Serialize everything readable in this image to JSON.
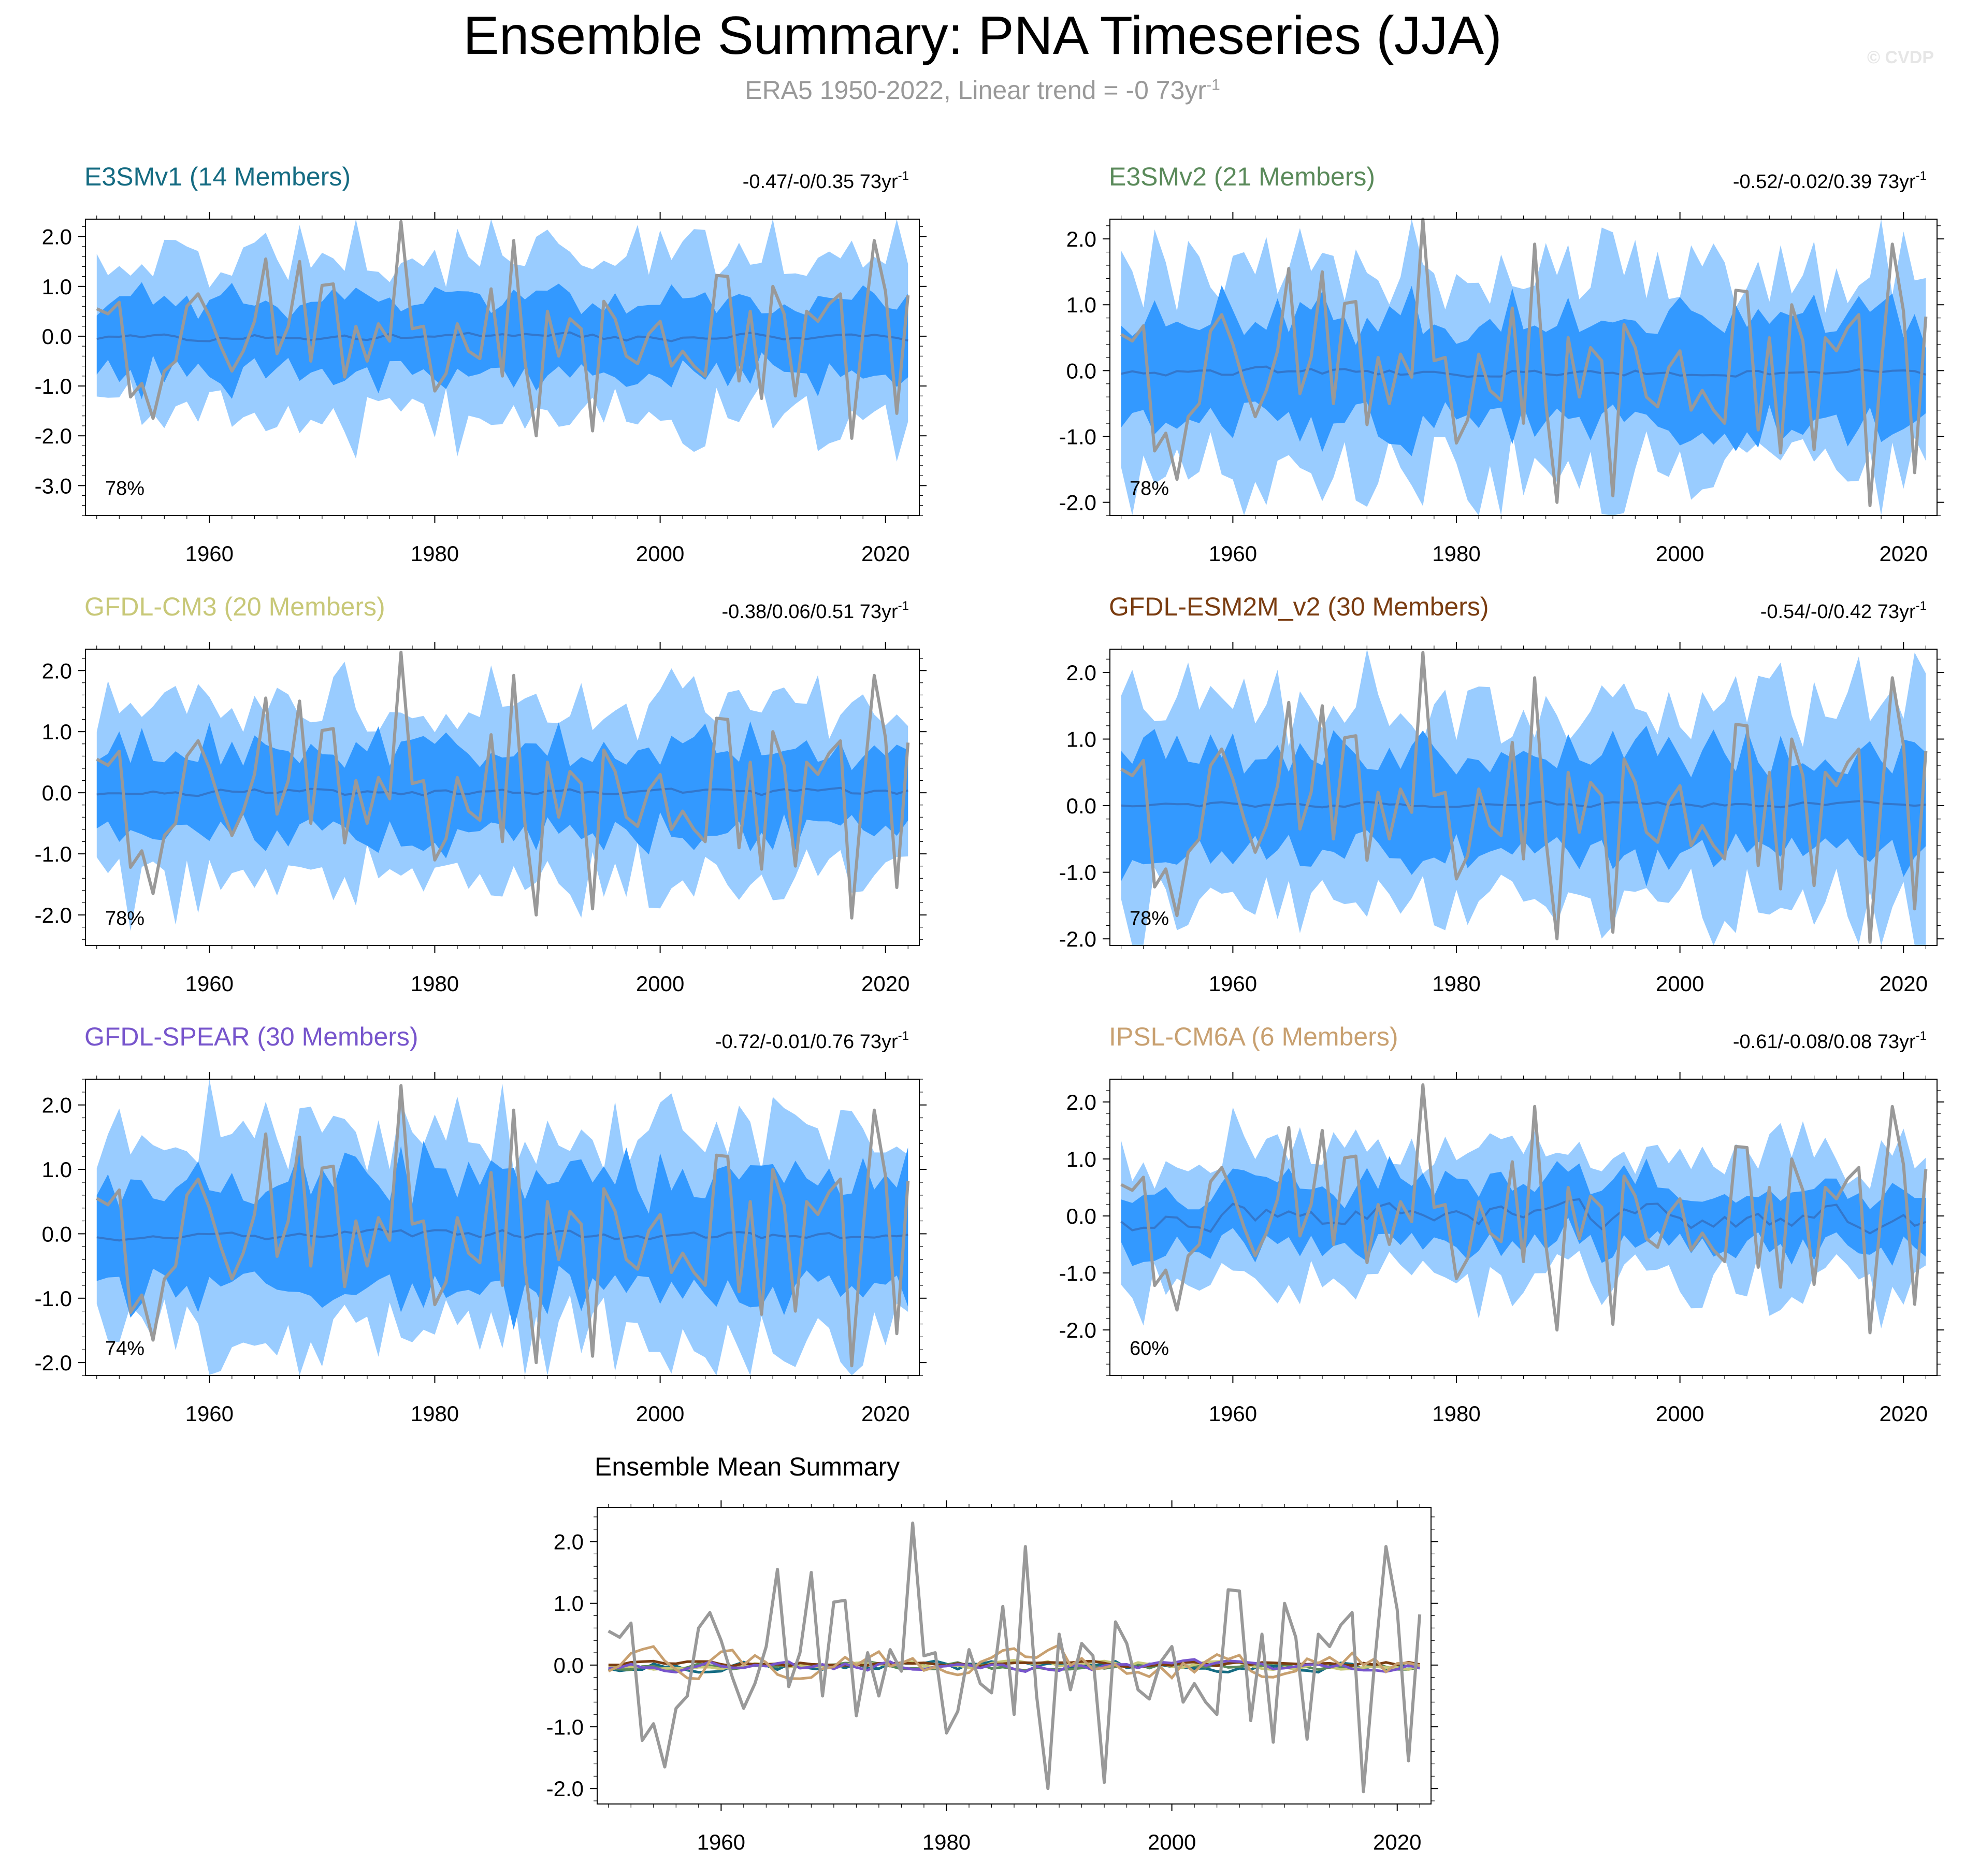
{
  "header": {
    "title": "Ensemble Summary: PNA Timeseries (JJA)",
    "subtitle_prefix": "ERA5 1950-2022, Linear trend = -0 73yr",
    "subtitle_sup": "-1",
    "watermark": "© CVDP"
  },
  "colors": {
    "obs": "#999999",
    "inner_band": "#3399ff",
    "outer_band": "#99ccff",
    "mean": "#3377cc",
    "E3SMv1": "#146b82",
    "E3SMv2": "#5a8a5a",
    "GFDL-CM3": "#c8c878",
    "GFDL-ESM2M_v2": "#7a3c10",
    "GFDL-SPEAR": "#7755cc",
    "IPSL-CM6A": "#c8a070"
  },
  "chart_data": [
    {
      "type": "area",
      "title": "E3SMv1 (14 Members)",
      "title_color": "#146b82",
      "trend_text": "-0.47/-0/0.35 73yr",
      "pct": "78%",
      "ylim": [
        -3.6,
        2.35
      ],
      "xlim": [
        1949,
        2023
      ],
      "yticks": [
        2.0,
        1.0,
        0.0,
        -1.0,
        -2.0,
        -3.0
      ],
      "ytick_labels": [
        "2.0",
        "1.0",
        "0.0",
        "-1.0",
        "-2.0",
        "-3.0"
      ],
      "xticks": [
        1960,
        1980,
        2000,
        2020
      ],
      "xtick_labels": [
        "1960",
        "1980",
        "2000",
        "2020"
      ],
      "seed": 11,
      "mean_amp": 0.1,
      "inner_hw": 0.75,
      "outer_hw": 1.6,
      "mean_offset": -0.02
    },
    {
      "type": "area",
      "title": "E3SMv2 (21 Members)",
      "title_color": "#5a8a5a",
      "trend_text": "-0.52/-0.02/0.39 73yr",
      "pct": "78%",
      "ylim": [
        -2.2,
        2.3
      ],
      "xlim": [
        1949,
        2023
      ],
      "yticks": [
        2.0,
        1.0,
        0.0,
        -1.0,
        -2.0
      ],
      "ytick_labels": [
        "2.0",
        "1.0",
        "0.0",
        "-1.0",
        "-2.0"
      ],
      "xticks": [
        1960,
        1980,
        2000,
        2020
      ],
      "xtick_labels": [
        "1960",
        "1980",
        "2000",
        "2020"
      ],
      "seed": 23,
      "mean_amp": 0.08,
      "inner_hw": 0.8,
      "outer_hw": 1.55,
      "mean_offset": -0.02
    },
    {
      "type": "area",
      "title": "GFDL-CM3 (20 Members)",
      "title_color": "#c8c878",
      "trend_text": "-0.38/0.06/0.51 73yr",
      "pct": "78%",
      "ylim": [
        -2.5,
        2.35
      ],
      "xlim": [
        1949,
        2023
      ],
      "yticks": [
        2.0,
        1.0,
        0.0,
        -1.0,
        -2.0
      ],
      "ytick_labels": [
        "2.0",
        "1.0",
        "0.0",
        "-1.0",
        "-2.0"
      ],
      "xticks": [
        1960,
        1980,
        2000,
        2020
      ],
      "xtick_labels": [
        "1960",
        "1980",
        "2000",
        "2020"
      ],
      "seed": 37,
      "mean_amp": 0.08,
      "inner_hw": 0.7,
      "outer_hw": 1.45,
      "mean_offset": 0.0
    },
    {
      "type": "area",
      "title": "GFDL-ESM2M_v2 (30 Members)",
      "title_color": "#7a3c10",
      "trend_text": "-0.54/-0/0.42 73yr",
      "pct": "78%",
      "ylim": [
        -2.1,
        2.35
      ],
      "xlim": [
        1949,
        2023
      ],
      "yticks": [
        2.0,
        1.0,
        0.0,
        -1.0,
        -2.0
      ],
      "ytick_labels": [
        "2.0",
        "1.0",
        "0.0",
        "-1.0",
        "-2.0"
      ],
      "xticks": [
        1960,
        1980,
        2000,
        2020
      ],
      "xtick_labels": [
        "1960",
        "1980",
        "2000",
        "2020"
      ],
      "seed": 41,
      "mean_amp": 0.05,
      "inner_hw": 0.75,
      "outer_hw": 1.5,
      "mean_offset": 0.02
    },
    {
      "type": "area",
      "title": "GFDL-SPEAR (30 Members)",
      "title_color": "#7755cc",
      "trend_text": "-0.72/-0.01/0.76 73yr",
      "pct": "74%",
      "ylim": [
        -2.2,
        2.4
      ],
      "xlim": [
        1949,
        2023
      ],
      "yticks": [
        2.0,
        1.0,
        0.0,
        -1.0,
        -2.0
      ],
      "ytick_labels": [
        "2.0",
        "1.0",
        "0.0",
        "-1.0",
        "-2.0"
      ],
      "xticks": [
        1960,
        1980,
        2000,
        2020
      ],
      "xtick_labels": [
        "1960",
        "1980",
        "2000",
        "2020"
      ],
      "seed": 53,
      "mean_amp": 0.1,
      "inner_hw": 0.85,
      "outer_hw": 1.6,
      "mean_offset": -0.02
    },
    {
      "type": "area",
      "title": "IPSL-CM6A (6 Members)",
      "title_color": "#c8a070",
      "trend_text": "-0.61/-0.08/0.08 73yr",
      "pct": "60%",
      "ylim": [
        -2.8,
        2.4
      ],
      "xlim": [
        1949,
        2023
      ],
      "yticks": [
        2.0,
        1.0,
        0.0,
        -1.0,
        -2.0
      ],
      "ytick_labels": [
        "2.0",
        "1.0",
        "0.0",
        "-1.0",
        "-2.0"
      ],
      "xticks": [
        1960,
        1980,
        2000,
        2020
      ],
      "xtick_labels": [
        "1960",
        "1980",
        "2000",
        "2020"
      ],
      "seed": 67,
      "mean_amp": 0.3,
      "inner_hw": 0.55,
      "outer_hw": 1.15,
      "mean_offset": 0.0
    },
    {
      "type": "line",
      "title": "Ensemble Mean Summary",
      "ylim": [
        -2.25,
        2.55
      ],
      "xlim": [
        1949,
        2023
      ],
      "yticks": [
        2.0,
        1.0,
        0.0,
        -1.0,
        -2.0
      ],
      "ytick_labels": [
        "2.0",
        "1.0",
        "0.0",
        "-1.0",
        "-2.0"
      ],
      "xticks": [
        1960,
        1980,
        2000,
        2020
      ],
      "xtick_labels": [
        "1960",
        "1980",
        "2000",
        "2020"
      ],
      "series_names": [
        "E3SMv1",
        "E3SMv2",
        "GFDL-CM3",
        "GFDL-ESM2M_v2",
        "GFDL-SPEAR",
        "IPSL-CM6A",
        "ERA5"
      ]
    }
  ],
  "obs_series": {
    "name": "ERA5",
    "x_start": 1950,
    "values": [
      0.55,
      0.45,
      0.68,
      -1.22,
      -0.95,
      -1.65,
      -0.7,
      -0.5,
      0.6,
      0.85,
      0.4,
      -0.2,
      -0.7,
      -0.3,
      0.3,
      1.55,
      -0.35,
      0.2,
      1.5,
      -0.5,
      1.02,
      1.05,
      -0.82,
      0.2,
      -0.5,
      0.25,
      -0.1,
      2.3,
      0.15,
      0.2,
      -1.1,
      -0.75,
      0.25,
      -0.3,
      -0.45,
      0.95,
      -0.8,
      1.92,
      -0.5,
      -2.0,
      0.5,
      -0.4,
      0.35,
      0.15,
      -1.9,
      0.7,
      0.35,
      -0.4,
      -0.55,
      0.05,
      0.3,
      -0.6,
      -0.3,
      -0.6,
      -0.8,
      1.22,
      1.2,
      -0.9,
      0.5,
      -1.25,
      1.0,
      0.45,
      -1.2,
      0.5,
      0.3,
      0.65,
      0.85,
      -2.05,
      0.05,
      1.92,
      0.9,
      -1.55,
      0.82
    ]
  }
}
